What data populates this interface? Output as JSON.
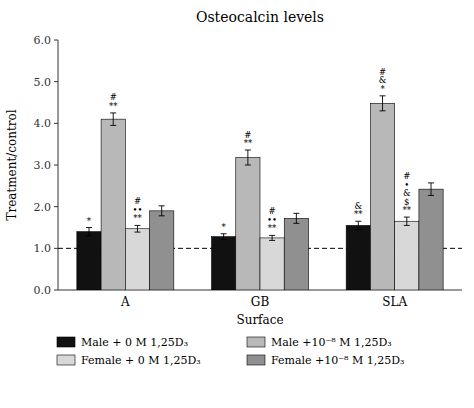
{
  "chart_data": {
    "type": "bar",
    "title": "Osteocalcin levels",
    "xlabel": "Surface",
    "ylabel": "Treatment/control",
    "categories": [
      "A",
      "GB",
      "SLA"
    ],
    "series": [
      {
        "name": "Male + 0 M 1,25D₃",
        "color": "#111111",
        "values": [
          1.4,
          1.28,
          1.55
        ],
        "errors": [
          0.1,
          0.07,
          0.1
        ]
      },
      {
        "name": "Male +10⁻⁸ M 1,25D₃",
        "color": "#b8b8b8",
        "values": [
          4.1,
          3.18,
          4.48
        ],
        "errors": [
          0.15,
          0.18,
          0.18
        ]
      },
      {
        "name": "Female + 0 M 1,25D₃",
        "color": "#d8d8d8",
        "values": [
          1.47,
          1.25,
          1.65
        ],
        "errors": [
          0.08,
          0.06,
          0.1
        ]
      },
      {
        "name": "Female +10⁻⁸ M 1,25D₃",
        "color": "#909090",
        "values": [
          1.9,
          1.72,
          2.42
        ],
        "errors": [
          0.12,
          0.12,
          0.15
        ]
      }
    ],
    "ylim": [
      0.0,
      6.0
    ],
    "yticks": [
      {
        "value": 0,
        "label": "0.0"
      },
      {
        "value": 1,
        "label": "1.0"
      },
      {
        "value": 2,
        "label": "2.0"
      },
      {
        "value": 3,
        "label": "3.0"
      },
      {
        "value": 4,
        "label": "4.0"
      },
      {
        "value": 5,
        "label": "5.0"
      },
      {
        "value": 6,
        "label": "6.0"
      }
    ],
    "reference_line": 1.0,
    "annotations": [
      {
        "series": 0,
        "category": 0,
        "text": "*"
      },
      {
        "series": 0,
        "category": 1,
        "text": "*"
      },
      {
        "series": 0,
        "category": 2,
        "text": "&\n**"
      },
      {
        "series": 1,
        "category": 0,
        "text": "#\n**"
      },
      {
        "series": 1,
        "category": 1,
        "text": "#\n**"
      },
      {
        "series": 1,
        "category": 2,
        "text": "#\n&\n*"
      },
      {
        "series": 2,
        "category": 0,
        "text": "#\n••\n**"
      },
      {
        "series": 2,
        "category": 1,
        "text": "#\n••\n**"
      },
      {
        "series": 2,
        "category": 2,
        "text": "#\n•\n&\n$\n**"
      }
    ],
    "grid": false,
    "legend": "bottom"
  }
}
